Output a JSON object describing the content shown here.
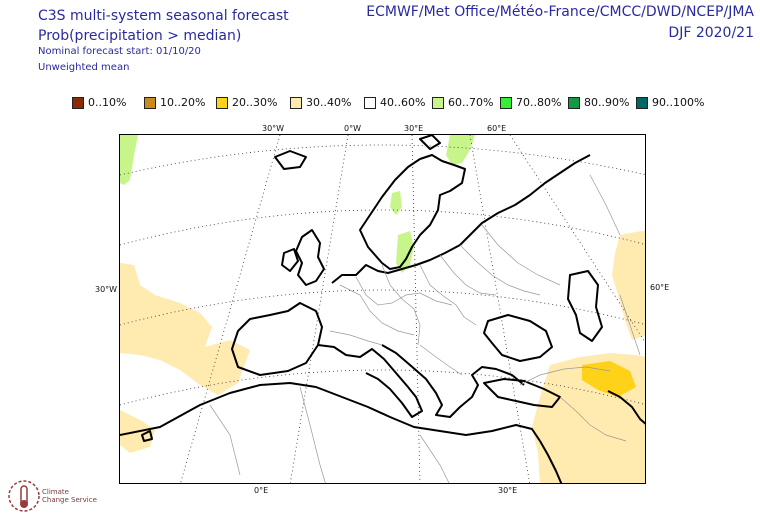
{
  "header": {
    "title": "C3S multi-system seasonal forecast",
    "subtitle": "Prob(precipitation > median)",
    "forecast_start": "Nominal forecast start: 01/10/20",
    "weighting": "Unweighted mean",
    "provider": "ECMWF/Met Office/Météo-France/CMCC/DWD/NCEP/JMA",
    "period": "DJF 2020/21"
  },
  "legend": [
    {
      "label": "0..10%",
      "color": "#8b2a00"
    },
    {
      "label": "10..20%",
      "color": "#c98a1e"
    },
    {
      "label": "20..30%",
      "color": "#ffd21a"
    },
    {
      "label": "30..40%",
      "color": "#ffeab0"
    },
    {
      "label": "40..60%",
      "color": "#ffffff"
    },
    {
      "label": "60..70%",
      "color": "#c7f58a"
    },
    {
      "label": "70..80%",
      "color": "#33ee33"
    },
    {
      "label": "80..90%",
      "color": "#119944"
    },
    {
      "label": "90..100%",
      "color": "#006666"
    }
  ],
  "grid_labels": {
    "top": [
      "30°W",
      "0°W",
      "30°E",
      "60°E"
    ],
    "left": "30°W",
    "right": "60°E",
    "bottom": [
      "0°E",
      "30°E"
    ]
  },
  "logo": {
    "line1": "Climate",
    "line2": "Change Service"
  }
}
